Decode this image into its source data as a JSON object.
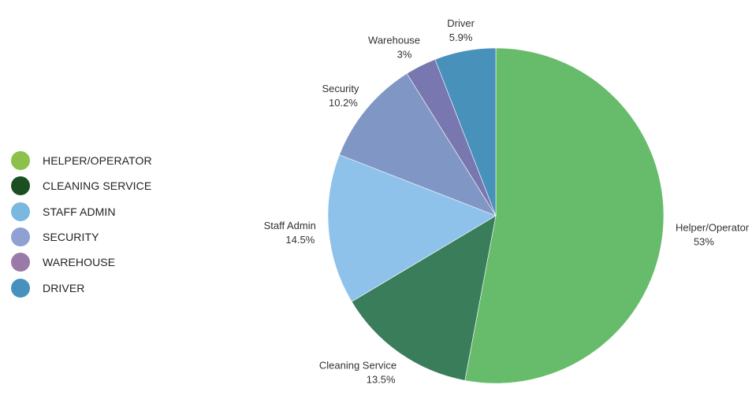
{
  "chart_data": {
    "type": "pie",
    "slices": [
      {
        "label": "Helper/Operator",
        "value_label": "53%",
        "value": 53,
        "color": "#67bc6b",
        "legend_label": "HELPER/OPERATOR",
        "legend_color": "#8cc14c"
      },
      {
        "label": "Cleaning Service",
        "value_label": "13.5%",
        "value": 13.5,
        "color": "#3a7d5a",
        "legend_label": "CLEANING SERVICE",
        "legend_color": "#1b4f22"
      },
      {
        "label": "Staff Admin",
        "value_label": "14.5%",
        "value": 14.5,
        "color": "#8ec2ea",
        "legend_label": "STAFF ADMIN",
        "legend_color": "#7ab8e0"
      },
      {
        "label": "Security",
        "value_label": "10.2%",
        "value": 10.2,
        "color": "#8097c5",
        "legend_label": "SECURITY",
        "legend_color": "#8fa0d2"
      },
      {
        "label": "Warehouse",
        "value_label": "3%",
        "value": 3,
        "color": "#7877b0",
        "legend_label": "WAREHOUSE",
        "legend_color": "#9a7ba8"
      },
      {
        "label": "Driver",
        "value_label": "5.9%",
        "value": 5.9,
        "color": "#4791bb",
        "legend_label": "DRIVER",
        "legend_color": "#4891bf"
      }
    ],
    "legend_position": "left"
  }
}
